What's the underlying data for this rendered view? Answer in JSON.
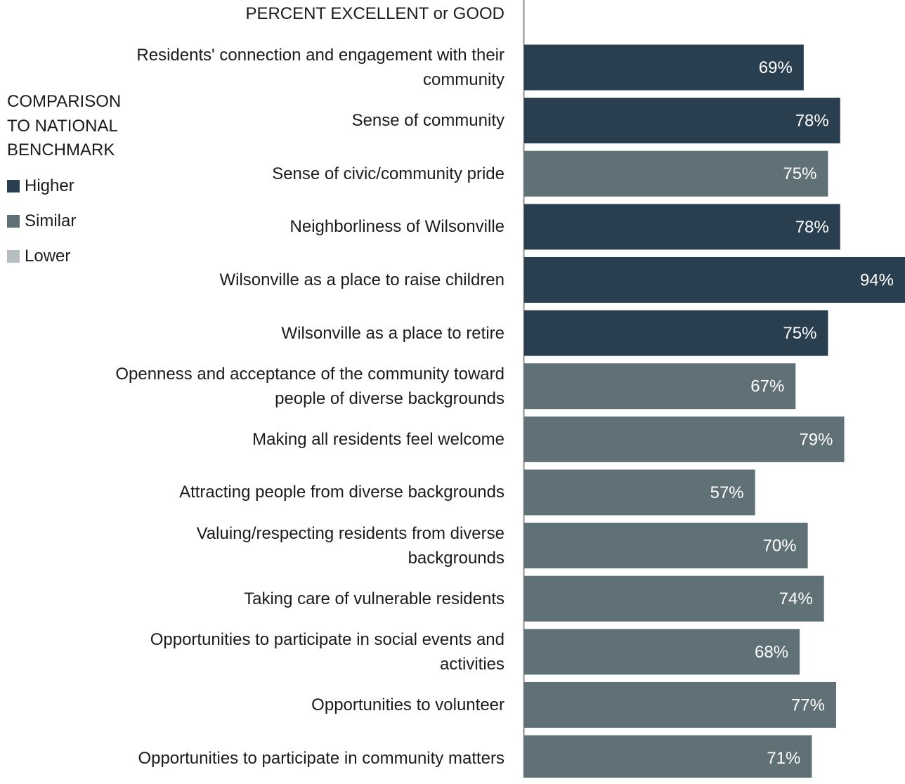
{
  "header": {
    "label": "PERCENT EXCELLENT or GOOD"
  },
  "legend": {
    "title": "COMPARISON TO NATIONAL BENCHMARK",
    "items": [
      {
        "label": "Higher",
        "color": "#293f50"
      },
      {
        "label": "Similar",
        "color": "#5f7076"
      },
      {
        "label": "Lower",
        "color": "#b6bec1"
      }
    ]
  },
  "chart_data": {
    "type": "bar",
    "orientation": "horizontal",
    "title": "",
    "xlabel": "PERCENT EXCELLENT or GOOD",
    "xlim": [
      0,
      94
    ],
    "grid": false,
    "legend_position": "left",
    "categories": [
      "Residents' connection and engagement with their community",
      "Sense of community",
      "Sense of civic/community pride",
      "Neighborliness of Wilsonville",
      "Wilsonville as a place to raise children",
      "Wilsonville as a place to retire",
      "Openness and acceptance of the community toward people of diverse backgrounds",
      "Making all residents feel welcome",
      "Attracting people from diverse backgrounds",
      "Valuing/respecting residents from diverse backgrounds",
      "Taking care of vulnerable residents",
      "Opportunities to participate in social events and activities",
      "Opportunities to volunteer",
      "Opportunities to participate in community matters"
    ],
    "values": [
      69,
      78,
      75,
      78,
      94,
      75,
      67,
      79,
      57,
      70,
      74,
      68,
      77,
      71
    ],
    "data_labels": [
      "69%",
      "78%",
      "75%",
      "78%",
      "94%",
      "75%",
      "67%",
      "79%",
      "57%",
      "70%",
      "74%",
      "68%",
      "77%",
      "71%"
    ],
    "comparison": [
      "Higher",
      "Higher",
      "Similar",
      "Higher",
      "Higher",
      "Higher",
      "Similar",
      "Similar",
      "Similar",
      "Similar",
      "Similar",
      "Similar",
      "Similar",
      "Similar"
    ]
  }
}
